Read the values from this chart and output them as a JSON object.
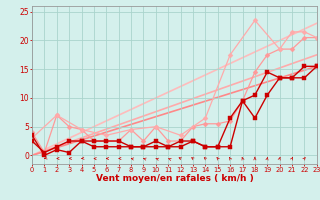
{
  "xlabel": "Vent moyen/en rafales ( km/h )",
  "xlim": [
    0,
    23
  ],
  "ylim": [
    -1.5,
    26
  ],
  "bg_color": "#d4f0ec",
  "grid_color": "#aad4cc",
  "x_ticks": [
    0,
    1,
    2,
    3,
    4,
    5,
    6,
    7,
    8,
    9,
    10,
    11,
    12,
    13,
    14,
    15,
    16,
    17,
    18,
    19,
    20,
    21,
    22,
    23
  ],
  "y_ticks": [
    0,
    5,
    10,
    15,
    20,
    25
  ],
  "ref_line1": {
    "x": [
      0,
      23
    ],
    "y": [
      0,
      23.0
    ],
    "color": "#ffbbbb",
    "lw": 1.2
  },
  "ref_line2": {
    "x": [
      0,
      23
    ],
    "y": [
      0,
      17.5
    ],
    "color": "#ffaaaa",
    "lw": 1.2
  },
  "ref_line3": {
    "x": [
      0,
      23
    ],
    "y": [
      0,
      15.5
    ],
    "color": "#ff8888",
    "lw": 1.2
  },
  "line_light1": {
    "x": [
      0,
      1,
      2,
      3,
      4,
      5,
      6,
      7,
      8,
      9,
      10,
      11,
      12,
      13,
      14,
      15,
      16,
      17,
      18,
      19,
      20,
      21,
      22,
      23
    ],
    "y": [
      4.0,
      0.5,
      7.0,
      5.0,
      4.5,
      2.5,
      2.5,
      2.5,
      4.5,
      2.5,
      5.0,
      2.5,
      2.5,
      5.0,
      5.5,
      5.5,
      6.0,
      9.5,
      14.5,
      17.5,
      18.5,
      18.5,
      20.5,
      20.5
    ],
    "color": "#ff9999",
    "lw": 0.9,
    "ms": 2.5
  },
  "line_light2": {
    "x": [
      0,
      2,
      4,
      6,
      8,
      10,
      12,
      14,
      16,
      18,
      20,
      21,
      22,
      23
    ],
    "y": [
      3.0,
      7.0,
      4.5,
      3.5,
      4.5,
      5.0,
      3.5,
      6.5,
      17.5,
      23.5,
      18.5,
      21.5,
      21.5,
      20.5
    ],
    "color": "#ffaaaa",
    "lw": 0.9,
    "ms": 2.5
  },
  "line_dark1": {
    "x": [
      0,
      1,
      2,
      3,
      4,
      5,
      6,
      7,
      8,
      9,
      10,
      11,
      12,
      13,
      14,
      15,
      16,
      17,
      18,
      19,
      20,
      21,
      22,
      23
    ],
    "y": [
      2.5,
      0.5,
      1.5,
      2.5,
      2.5,
      1.5,
      1.5,
      1.5,
      1.5,
      1.5,
      2.5,
      1.5,
      1.5,
      2.5,
      1.5,
      1.5,
      6.5,
      9.5,
      10.5,
      14.5,
      13.5,
      13.5,
      15.5,
      15.5
    ],
    "color": "#cc0000",
    "lw": 1.0,
    "ms": 2.5
  },
  "line_dark2": {
    "x": [
      0,
      1,
      2,
      3,
      4,
      5,
      6,
      7,
      8,
      9,
      10,
      11,
      12,
      13,
      14,
      15,
      16,
      17,
      18,
      19,
      20,
      21,
      22,
      23
    ],
    "y": [
      3.5,
      0.0,
      1.0,
      0.5,
      2.5,
      2.5,
      2.5,
      2.5,
      1.5,
      1.5,
      1.5,
      1.5,
      2.5,
      2.5,
      1.5,
      1.5,
      1.5,
      9.5,
      6.5,
      10.5,
      13.5,
      13.5,
      13.5,
      15.5
    ],
    "color": "#cc0000",
    "lw": 1.0,
    "ms": 2.5
  },
  "arrow_angles": [
    200,
    205,
    185,
    190,
    195,
    175,
    180,
    185,
    160,
    155,
    150,
    145,
    130,
    125,
    120,
    110,
    105,
    100,
    90,
    85,
    80,
    75,
    70,
    65
  ],
  "tick_color": "#cc0000",
  "xlabel_color": "#cc0000",
  "xlabel_fontsize": 6.5,
  "tick_fontsize_x": 4.8,
  "tick_fontsize_y": 5.5
}
